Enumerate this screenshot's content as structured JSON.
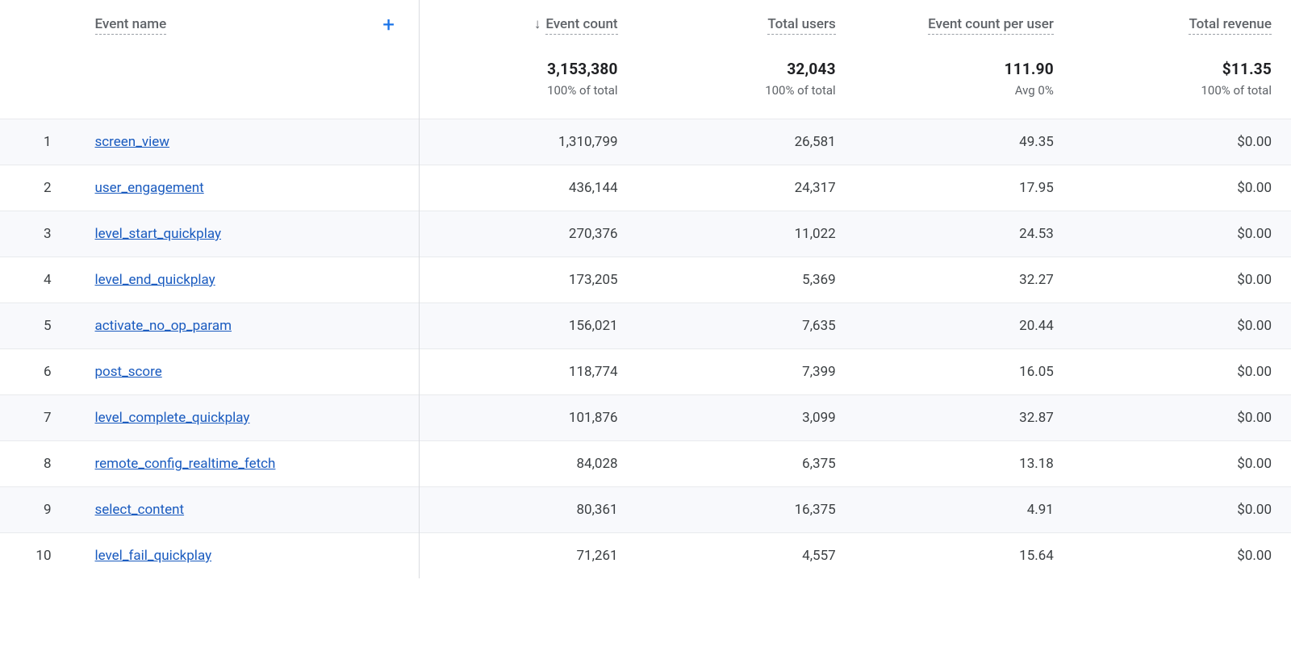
{
  "columns": {
    "row_dim_label": "Event name",
    "metrics": [
      {
        "key": "event_count",
        "label": "Event count",
        "sorted_desc": true
      },
      {
        "key": "total_users",
        "label": "Total users",
        "sorted_desc": false
      },
      {
        "key": "ec_per_user",
        "label": "Event count per user",
        "sorted_desc": false
      },
      {
        "key": "total_revenue",
        "label": "Total revenue",
        "sorted_desc": false
      }
    ]
  },
  "totals": {
    "event_count": {
      "value": "3,153,380",
      "sub": "100% of total"
    },
    "total_users": {
      "value": "32,043",
      "sub": "100% of total"
    },
    "ec_per_user": {
      "value": "111.90",
      "sub": "Avg 0%"
    },
    "total_revenue": {
      "value": "$11.35",
      "sub": "100% of total"
    }
  },
  "rows": [
    {
      "idx": "1",
      "name": "screen_view",
      "event_count": "1,310,799",
      "total_users": "26,581",
      "ec_per_user": "49.35",
      "total_revenue": "$0.00"
    },
    {
      "idx": "2",
      "name": "user_engagement",
      "event_count": "436,144",
      "total_users": "24,317",
      "ec_per_user": "17.95",
      "total_revenue": "$0.00"
    },
    {
      "idx": "3",
      "name": "level_start_quickplay",
      "event_count": "270,376",
      "total_users": "11,022",
      "ec_per_user": "24.53",
      "total_revenue": "$0.00"
    },
    {
      "idx": "4",
      "name": "level_end_quickplay",
      "event_count": "173,205",
      "total_users": "5,369",
      "ec_per_user": "32.27",
      "total_revenue": "$0.00"
    },
    {
      "idx": "5",
      "name": "activate_no_op_param",
      "event_count": "156,021",
      "total_users": "7,635",
      "ec_per_user": "20.44",
      "total_revenue": "$0.00"
    },
    {
      "idx": "6",
      "name": "post_score",
      "event_count": "118,774",
      "total_users": "7,399",
      "ec_per_user": "16.05",
      "total_revenue": "$0.00"
    },
    {
      "idx": "7",
      "name": "level_complete_quickplay",
      "event_count": "101,876",
      "total_users": "3,099",
      "ec_per_user": "32.87",
      "total_revenue": "$0.00"
    },
    {
      "idx": "8",
      "name": "remote_config_realtime_fetch",
      "event_count": "84,028",
      "total_users": "6,375",
      "ec_per_user": "13.18",
      "total_revenue": "$0.00"
    },
    {
      "idx": "9",
      "name": "select_content",
      "event_count": "80,361",
      "total_users": "16,375",
      "ec_per_user": "4.91",
      "total_revenue": "$0.00"
    },
    {
      "idx": "10",
      "name": "level_fail_quickplay",
      "event_count": "71,261",
      "total_users": "4,557",
      "ec_per_user": "15.64",
      "total_revenue": "$0.00"
    }
  ],
  "style": {
    "link_color": "#1a5bbf",
    "alt_row_bg": "#f8f9fc",
    "border_color": "#e8eaed",
    "divider_color": "#dadce0",
    "header_text_color": "#5f6368",
    "body_text_color": "#3c4043",
    "plus_color": "#1a73e8"
  }
}
